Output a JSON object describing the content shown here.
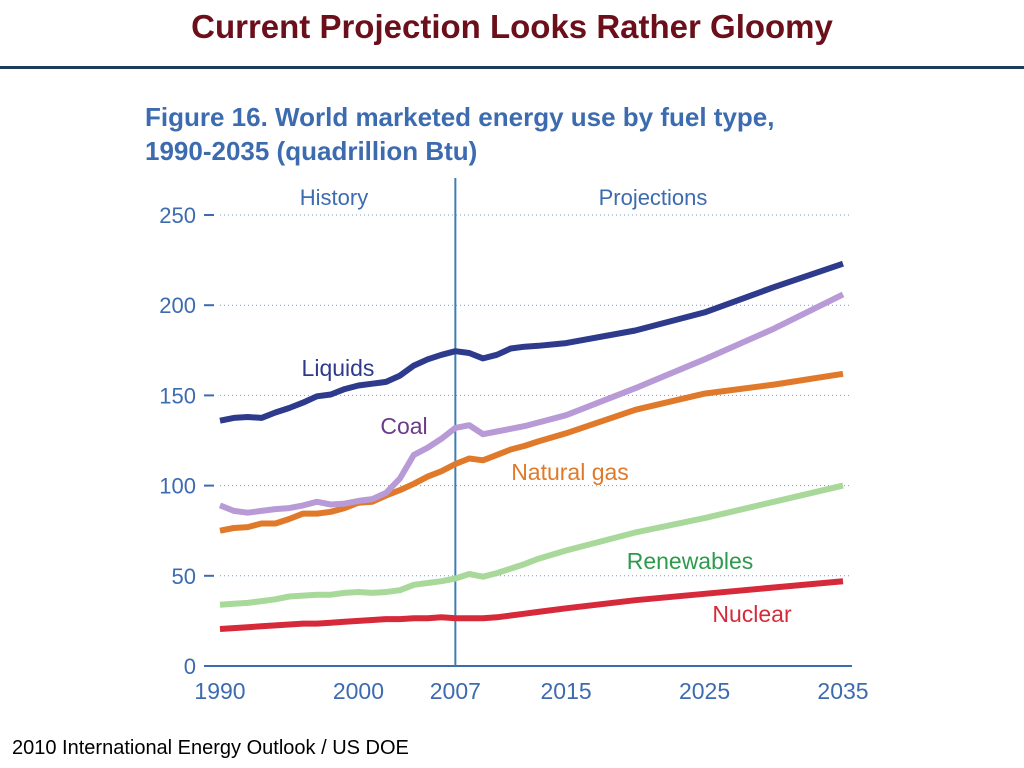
{
  "slide": {
    "title": "Current Projection Looks Rather Gloomy",
    "source_note": "2010 International Energy Outlook / US DOE"
  },
  "colors": {
    "title": "#6b0f1a",
    "rule": "#1c3d5a",
    "figure_title": "#3d6bb0",
    "axis": "#3d6bb0",
    "divider": "#3d7fb0"
  },
  "figure": {
    "title_line1": "Figure 16. World marketed energy use by fuel type,",
    "title_line2": "1990-2035 (quadrillion Btu)"
  },
  "chart_data": {
    "type": "line",
    "title": "Figure 16. World marketed energy use by fuel type, 1990-2035 (quadrillion Btu)",
    "xlabel": "",
    "ylabel": "",
    "xlim": [
      1990,
      2035
    ],
    "ylim": [
      0,
      250
    ],
    "x_ticks": [
      "1990",
      "2000",
      "2007",
      "2015",
      "2025",
      "2035"
    ],
    "y_ticks": [
      "0",
      "50",
      "100",
      "150",
      "200",
      "250"
    ],
    "grid": "horizontal dotted",
    "divider_year": 2007,
    "region_labels": [
      "History",
      "Projections"
    ],
    "series": [
      {
        "name": "Liquids",
        "color": "#2e3a8c",
        "label_color": "#2e3a8c",
        "points": [
          [
            1990,
            136
          ],
          [
            1991,
            137.5
          ],
          [
            1992,
            138
          ],
          [
            1993,
            137.5
          ],
          [
            1994,
            140.5
          ],
          [
            1995,
            143
          ],
          [
            1996,
            146
          ],
          [
            1997,
            149.5
          ],
          [
            1998,
            150.5
          ],
          [
            1999,
            153.5
          ],
          [
            2000,
            155.5
          ],
          [
            2001,
            156.5
          ],
          [
            2002,
            157.5
          ],
          [
            2003,
            161
          ],
          [
            2004,
            166.5
          ],
          [
            2005,
            170
          ],
          [
            2006,
            172.5
          ],
          [
            2007,
            174.5
          ],
          [
            2008,
            173.5
          ],
          [
            2009,
            170.5
          ],
          [
            2010,
            172.5
          ],
          [
            2011,
            176
          ],
          [
            2012,
            177
          ],
          [
            2013,
            177.5
          ],
          [
            2015,
            179
          ],
          [
            2020,
            186
          ],
          [
            2025,
            196
          ],
          [
            2030,
            210
          ],
          [
            2035,
            223
          ]
        ]
      },
      {
        "name": "Coal",
        "color": "#b89ad6",
        "label_color": "#6b3a8c",
        "points": [
          [
            1990,
            89
          ],
          [
            1991,
            86
          ],
          [
            1992,
            85
          ],
          [
            1993,
            86
          ],
          [
            1994,
            87
          ],
          [
            1995,
            87.5
          ],
          [
            1996,
            89
          ],
          [
            1997,
            91
          ],
          [
            1998,
            89.5
          ],
          [
            1999,
            90
          ],
          [
            2000,
            91.5
          ],
          [
            2001,
            92.5
          ],
          [
            2002,
            96
          ],
          [
            2003,
            104
          ],
          [
            2004,
            117
          ],
          [
            2005,
            121
          ],
          [
            2006,
            126
          ],
          [
            2007,
            132
          ],
          [
            2008,
            133.5
          ],
          [
            2009,
            128.5
          ],
          [
            2010,
            130
          ],
          [
            2011,
            131.5
          ],
          [
            2012,
            133
          ],
          [
            2013,
            135
          ],
          [
            2015,
            139
          ],
          [
            2020,
            154
          ],
          [
            2025,
            170
          ],
          [
            2030,
            187
          ],
          [
            2035,
            206
          ]
        ]
      },
      {
        "name": "Natural gas",
        "color": "#e07a2a",
        "label_color": "#e07a2a",
        "points": [
          [
            1990,
            75
          ],
          [
            1991,
            76.5
          ],
          [
            1992,
            77
          ],
          [
            1993,
            79
          ],
          [
            1994,
            79
          ],
          [
            1995,
            81.5
          ],
          [
            1996,
            84.5
          ],
          [
            1997,
            84.5
          ],
          [
            1998,
            85.5
          ],
          [
            1999,
            87.5
          ],
          [
            2000,
            90.5
          ],
          [
            2001,
            91
          ],
          [
            2002,
            94.5
          ],
          [
            2003,
            97.5
          ],
          [
            2004,
            101
          ],
          [
            2005,
            105
          ],
          [
            2006,
            108
          ],
          [
            2007,
            112
          ],
          [
            2008,
            115
          ],
          [
            2009,
            114
          ],
          [
            2010,
            117
          ],
          [
            2011,
            120
          ],
          [
            2012,
            122
          ],
          [
            2013,
            124.5
          ],
          [
            2015,
            129
          ],
          [
            2020,
            142
          ],
          [
            2025,
            151
          ],
          [
            2030,
            156
          ],
          [
            2035,
            162
          ]
        ]
      },
      {
        "name": "Renewables",
        "color": "#a8d89a",
        "label_color": "#2e9a4e",
        "points": [
          [
            1990,
            34
          ],
          [
            1991,
            34.5
          ],
          [
            1992,
            35
          ],
          [
            1993,
            36
          ],
          [
            1994,
            37
          ],
          [
            1995,
            38.5
          ],
          [
            1996,
            39
          ],
          [
            1997,
            39.5
          ],
          [
            1998,
            39.5
          ],
          [
            1999,
            40.5
          ],
          [
            2000,
            41
          ],
          [
            2001,
            40.5
          ],
          [
            2002,
            41
          ],
          [
            2003,
            42
          ],
          [
            2004,
            45
          ],
          [
            2005,
            46
          ],
          [
            2006,
            47
          ],
          [
            2007,
            48.5
          ],
          [
            2008,
            51
          ],
          [
            2009,
            49.5
          ],
          [
            2010,
            51.5
          ],
          [
            2011,
            54
          ],
          [
            2012,
            56.5
          ],
          [
            2013,
            59.5
          ],
          [
            2015,
            64
          ],
          [
            2020,
            74
          ],
          [
            2025,
            82
          ],
          [
            2030,
            91
          ],
          [
            2035,
            100
          ]
        ]
      },
      {
        "name": "Nuclear",
        "color": "#d62a3a",
        "label_color": "#d62a3a",
        "points": [
          [
            1990,
            20.5
          ],
          [
            1991,
            21
          ],
          [
            1992,
            21.5
          ],
          [
            1993,
            22
          ],
          [
            1994,
            22.5
          ],
          [
            1995,
            23
          ],
          [
            1996,
            23.5
          ],
          [
            1997,
            23.5
          ],
          [
            1998,
            24
          ],
          [
            1999,
            24.5
          ],
          [
            2000,
            25
          ],
          [
            2001,
            25.5
          ],
          [
            2002,
            26
          ],
          [
            2003,
            26
          ],
          [
            2004,
            26.5
          ],
          [
            2005,
            26.5
          ],
          [
            2006,
            27
          ],
          [
            2007,
            26.5
          ],
          [
            2008,
            26.5
          ],
          [
            2009,
            26.5
          ],
          [
            2010,
            27
          ],
          [
            2011,
            28
          ],
          [
            2012,
            29
          ],
          [
            2013,
            30
          ],
          [
            2015,
            32
          ],
          [
            2020,
            36.5
          ],
          [
            2025,
            40
          ],
          [
            2030,
            43.5
          ],
          [
            2035,
            47
          ]
        ]
      }
    ]
  }
}
